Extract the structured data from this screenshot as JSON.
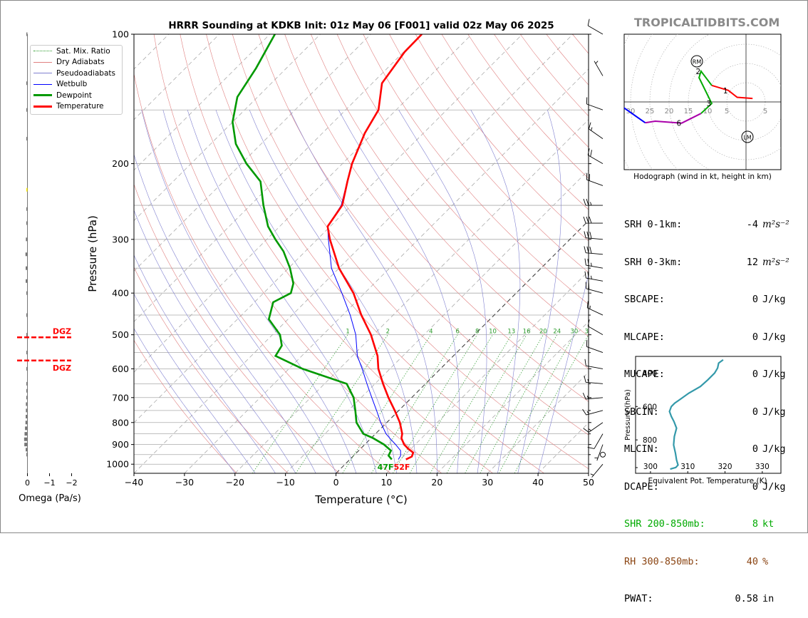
{
  "title": "HRRR Sounding at KDKB Init: 01z May 06 [F001] valid 02z May 06 2025",
  "brand": "TROPICALTIDBITS.COM",
  "colors": {
    "temperature": "#ff0000",
    "dewpoint": "#009900",
    "wetbulb": "#0000ff",
    "dry_adiabats": "#e08080",
    "pseudoadiabats": "#8080d0",
    "mix_ratio": "#2a9a2a",
    "isotherm": "#999999",
    "hodo_low": "#ff0000",
    "hodo_mid": "#00aa00",
    "hodo_upper": "#aa00aa",
    "hodo_top": "#0000ff",
    "theta_e": "#3399aa",
    "dgz": "#ff0000",
    "shr": "#00aa00",
    "rh": "#8b4513"
  },
  "legend": [
    {
      "label": "Sat. Mix. Ratio",
      "style": "dotted",
      "color": "#2a9a2a"
    },
    {
      "label": "Dry Adiabats",
      "style": "solid-thin",
      "color": "#e08080"
    },
    {
      "label": "Pseudoadiabats",
      "style": "solid-thin",
      "color": "#8080d0"
    },
    {
      "label": "Wetbulb",
      "style": "solid",
      "color": "#0000ff"
    },
    {
      "label": "Dewpoint",
      "style": "thick",
      "color": "#009900"
    },
    {
      "label": "Temperature",
      "style": "thick",
      "color": "#ff0000"
    }
  ],
  "omega": {
    "xlabel": "Omega (Pa/s)",
    "xticks": [
      "0",
      "−1",
      "−2"
    ],
    "dgz_label": "DGZ"
  },
  "sfc_labels": {
    "dewpoint": "47F",
    "temperature": "52F"
  },
  "hodograph": {
    "caption": "Hodograph (wind in kt, height in km)",
    "ring_labels": [
      "30",
      "25",
      "20",
      "15",
      "10",
      "5",
      "5"
    ],
    "rm_label": "RM",
    "lm_label": "LM",
    "height_labels": [
      "1",
      "2",
      "3",
      "6",
      "9"
    ]
  },
  "stats": [
    {
      "label": "SRH 0-1km:",
      "value": "-4",
      "unit": "m²s⁻²",
      "color": "#000000"
    },
    {
      "label": "SRH 0-3km:",
      "value": "12",
      "unit": "m²s⁻²",
      "color": "#000000"
    },
    {
      "label": "SBCAPE:",
      "value": "0",
      "unit": "J/kg",
      "color": "#000000"
    },
    {
      "label": "MLCAPE:",
      "value": "0",
      "unit": "J/kg",
      "color": "#000000"
    },
    {
      "label": "MUCAPE:",
      "value": "0",
      "unit": "J/kg",
      "color": "#000000"
    },
    {
      "label": "SBCIN:",
      "value": "0",
      "unit": "J/kg",
      "color": "#000000"
    },
    {
      "label": "MLCIN:",
      "value": "0",
      "unit": "J/kg",
      "color": "#000000"
    },
    {
      "label": "DCAPE:",
      "value": "0",
      "unit": "J/kg",
      "color": "#000000"
    },
    {
      "label": "SHR 200-850mb:",
      "value": "8",
      "unit": "kt",
      "color": "#00aa00"
    },
    {
      "label": "RH 300-850mb:",
      "value": "40",
      "unit": "%",
      "color": "#8b4513"
    },
    {
      "label": "PWAT:",
      "value": "0.58",
      "unit": "in",
      "color": "#000000"
    }
  ],
  "chart_data": [
    {
      "type": "line",
      "title": "HRRR Sounding at KDKB Init: 01z May 06 [F001] valid 02z May 06 2025",
      "xlabel": "Temperature (°C)",
      "ylabel": "Pressure (hPa)",
      "xlim": [
        -40,
        50
      ],
      "ylim": [
        1050,
        100
      ],
      "y_scale": "log",
      "skew": true,
      "xticks": [
        "−40",
        "−30",
        "−20",
        "−10",
        "0",
        "10",
        "20",
        "30",
        "40",
        "50"
      ],
      "yticks": [
        "100",
        "200",
        "300",
        "400",
        "500",
        "600",
        "700",
        "800",
        "900",
        "1000"
      ],
      "mix_ratio_labels": [
        "1",
        "2",
        "4",
        "6",
        "8",
        "10",
        "13",
        "16",
        "20",
        "24",
        "30",
        "36"
      ],
      "series": [
        {
          "name": "Temperature",
          "p": [
            975,
            960,
            940,
            920,
            900,
            870,
            850,
            800,
            750,
            700,
            650,
            600,
            560,
            500,
            450,
            400,
            350,
            300,
            280,
            250,
            220,
            200,
            170,
            150,
            130,
            110,
            100
          ],
          "t": [
            11.1,
            11.7,
            11.2,
            9.4,
            7.8,
            6.0,
            5.3,
            2.6,
            -0.8,
            -4.6,
            -8.4,
            -12.3,
            -15.0,
            -20.5,
            -26.3,
            -32.2,
            -40.0,
            -47.5,
            -50.5,
            -51.8,
            -55.5,
            -58.1,
            -61.6,
            -63.5,
            -68.1,
            -69.8,
            -69.9
          ]
        },
        {
          "name": "Dewpoint",
          "p": [
            975,
            955,
            930,
            900,
            870,
            850,
            800,
            750,
            700,
            650,
            600,
            560,
            530,
            500,
            460,
            420,
            400,
            380,
            350,
            320,
            300,
            280,
            250,
            220,
            200,
            180,
            160,
            140,
            120,
            100
          ],
          "d": [
            8.3,
            6.9,
            6.4,
            3.8,
            0.4,
            -2.4,
            -6.0,
            -8.6,
            -11.5,
            -15.6,
            -27.3,
            -35.2,
            -36.0,
            -38.5,
            -43.8,
            -46.3,
            -44.6,
            -46.0,
            -49.7,
            -54.3,
            -58.3,
            -62.3,
            -67.4,
            -72.7,
            -79.0,
            -85.0,
            -90.0,
            -94.0,
            -96.0,
            -99.0
          ]
        },
        {
          "name": "Wetbulb",
          "p": [
            975,
            955,
            930,
            900,
            870,
            850,
            800,
            750,
            700,
            650,
            600,
            560,
            500,
            450,
            400,
            350,
            300,
            280,
            250,
            200,
            170,
            150,
            130,
            110,
            100
          ],
          "w": [
            9.6,
            9.3,
            8.3,
            6.1,
            3.7,
            2.1,
            -1.2,
            -4.4,
            -7.9,
            -11.6,
            -15.5,
            -19.0,
            -23.5,
            -28.5,
            -34.5,
            -41.5,
            -47.8,
            -50.5,
            -52.0,
            -58.2,
            -61.6,
            -63.5,
            -68.1,
            -69.8,
            -69.9
          ]
        }
      ],
      "winds_kt": [
        {
          "p": 1000,
          "spd": 5,
          "dir": 220
        },
        {
          "p": 950,
          "spd": 0,
          "dir": 0
        },
        {
          "p": 900,
          "spd": 5,
          "dir": 200
        },
        {
          "p": 850,
          "spd": 10,
          "dir": 210
        },
        {
          "p": 800,
          "spd": 15,
          "dir": 235
        },
        {
          "p": 750,
          "spd": 15,
          "dir": 255
        },
        {
          "p": 700,
          "spd": 15,
          "dir": 265
        },
        {
          "p": 650,
          "spd": 15,
          "dir": 275
        },
        {
          "p": 600,
          "spd": 10,
          "dir": 280
        },
        {
          "p": 550,
          "spd": 10,
          "dir": 290
        },
        {
          "p": 500,
          "spd": 10,
          "dir": 300
        },
        {
          "p": 450,
          "spd": 15,
          "dir": 295
        },
        {
          "p": 400,
          "spd": 20,
          "dir": 285
        },
        {
          "p": 375,
          "spd": 25,
          "dir": 280
        },
        {
          "p": 350,
          "spd": 25,
          "dir": 280
        },
        {
          "p": 325,
          "spd": 30,
          "dir": 275
        },
        {
          "p": 300,
          "spd": 30,
          "dir": 275
        },
        {
          "p": 275,
          "spd": 30,
          "dir": 270
        },
        {
          "p": 250,
          "spd": 25,
          "dir": 270
        },
        {
          "p": 225,
          "spd": 20,
          "dir": 290
        },
        {
          "p": 200,
          "spd": 20,
          "dir": 300
        },
        {
          "p": 175,
          "spd": 15,
          "dir": 305
        },
        {
          "p": 150,
          "spd": 10,
          "dir": 290
        },
        {
          "p": 125,
          "spd": 5,
          "dir": 330
        },
        {
          "p": 100,
          "spd": 10,
          "dir": 300
        }
      ]
    },
    {
      "type": "bar",
      "xlabel": "Omega (Pa/s)",
      "xlim": [
        0.2,
        -2.2
      ],
      "p": [
        100,
        130,
        150,
        175,
        230,
        255,
        275,
        300,
        325,
        350,
        375,
        400,
        450,
        500,
        550,
        600,
        650,
        675,
        700,
        725,
        750,
        775,
        800,
        825,
        850,
        875,
        900,
        925,
        950
      ],
      "values": [
        -0.03,
        -0.05,
        -0.02,
        -0.02,
        -0.02,
        -0.02,
        -0.05,
        -0.07,
        -0.09,
        -0.08,
        -0.08,
        -0.03,
        -0.02,
        -0.01,
        -0.01,
        -0.01,
        -0.03,
        -0.04,
        -0.05,
        -0.07,
        -0.07,
        -0.08,
        -0.09,
        -0.11,
        -0.13,
        -0.15,
        -0.14,
        -0.08,
        -0.04
      ],
      "dgz_p": [
        507,
        574
      ]
    },
    {
      "type": "line",
      "title": "Hodograph (wind in kt, height in km)",
      "xlim": [
        -35,
        10
      ],
      "ylim": [
        -20,
        20
      ],
      "u": [
        1.7,
        -2.3,
        -4.6,
        -8.9,
        -11.7,
        -12.2,
        -8.9,
        -11.7,
        -16.7,
        -23.6,
        -26.2,
        -33.2,
        -34.7
      ],
      "v": [
        0.9,
        1.2,
        3.0,
        4.3,
        8.0,
        6.3,
        -0.4,
        -3.0,
        -5.5,
        -5.0,
        -5.4,
        -0.5,
        3.0
      ],
      "h_km": [
        0,
        0.5,
        1,
        1.5,
        2,
        2.5,
        3,
        5,
        6,
        7,
        8,
        9,
        10
      ]
    },
    {
      "type": "line",
      "xlabel": "Equivalent Pot. Temperature (K)",
      "ylabel": "Pressure (hPa)",
      "xlim": [
        296,
        335
      ],
      "ylim": [
        1000,
        300
      ],
      "xticks": [
        "300",
        "310",
        "320",
        "330"
      ],
      "yticks": [
        "400",
        "600",
        "800"
      ],
      "p": [
        975,
        965,
        950,
        920,
        880,
        830,
        780,
        730,
        690,
        660,
        630,
        600,
        580,
        560,
        520,
        480,
        440,
        400,
        370,
        340,
        320
      ],
      "theta_e": [
        305.3,
        306.8,
        307.4,
        307.0,
        306.7,
        306.2,
        306.4,
        307.0,
        306.3,
        305.6,
        305.1,
        305.6,
        306.5,
        307.8,
        310.3,
        313.4,
        315.4,
        317.2,
        318.0,
        318.3,
        319.5
      ]
    }
  ]
}
